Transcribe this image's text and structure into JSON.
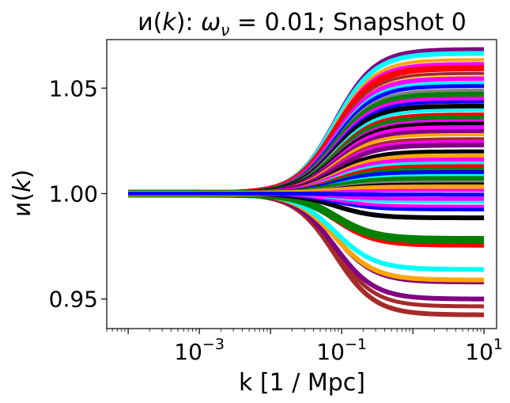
{
  "chart_data": {
    "type": "line",
    "title": "ии(k): ω_ν = 0.01; Snapshot 0",
    "title_parts": {
      "func": "и(",
      "var": "k",
      "close": "): ",
      "omega": "ω",
      "nu": "ν",
      "rest": " = 0.01; Snapshot 0"
    },
    "xlabel": "k [1 / Mpc]",
    "ylabel_parts": {
      "func": "и(",
      "var": "k",
      "close": ")"
    },
    "x_scale": "log",
    "xlim": [
      5e-05,
      15
    ],
    "ylim": [
      0.936,
      1.073
    ],
    "x_ticks": [
      {
        "value": 0.001,
        "base": "10",
        "exp": "−3"
      },
      {
        "value": 0.1,
        "base": "10",
        "exp": "−1"
      },
      {
        "value": 10,
        "base": "10",
        "exp": "1"
      }
    ],
    "y_ticks": [
      {
        "value": 0.95,
        "label": "0.95"
      },
      {
        "value": 1.0,
        "label": "1.00"
      },
      {
        "value": 1.05,
        "label": "1.05"
      }
    ],
    "k_range": [
      0.0001,
      10
    ],
    "transition_k": 0.08,
    "series": [
      {
        "final": 1.0685,
        "color": "#800080",
        "width": 5
      },
      {
        "final": 1.0665,
        "color": "#00ffff",
        "width": 6
      },
      {
        "final": 1.0635,
        "color": "#ffa500",
        "width": 4
      },
      {
        "final": 1.0615,
        "color": "#ff00ff",
        "width": 5
      },
      {
        "final": 1.0595,
        "color": "#ff0000",
        "width": 8
      },
      {
        "final": 1.057,
        "color": "#a52a2a",
        "width": 4
      },
      {
        "final": 1.0555,
        "color": "#ffff00",
        "width": 3
      },
      {
        "final": 1.0545,
        "color": "#ff00ff",
        "width": 6
      },
      {
        "final": 1.0525,
        "color": "#00ffff",
        "width": 4
      },
      {
        "final": 1.051,
        "color": "#0000ff",
        "width": 5
      },
      {
        "final": 1.049,
        "color": "#808080",
        "width": 4
      },
      {
        "final": 1.047,
        "color": "#008000",
        "width": 7
      },
      {
        "final": 1.045,
        "color": "#ff00ff",
        "width": 5
      },
      {
        "final": 1.0435,
        "color": "#0000ff",
        "width": 4
      },
      {
        "final": 1.0415,
        "color": "#000000",
        "width": 6
      },
      {
        "final": 1.0395,
        "color": "#00ffff",
        "width": 4
      },
      {
        "final": 1.0375,
        "color": "#ff0000",
        "width": 5
      },
      {
        "final": 1.036,
        "color": "#008000",
        "width": 6
      },
      {
        "final": 1.0345,
        "color": "#ff00ff",
        "width": 4
      },
      {
        "final": 1.033,
        "color": "#000000",
        "width": 6
      },
      {
        "final": 1.0315,
        "color": "#ff00ff",
        "width": 5
      },
      {
        "final": 1.0295,
        "color": "#800080",
        "width": 6
      },
      {
        "final": 1.028,
        "color": "#ffa500",
        "width": 4
      },
      {
        "final": 1.026,
        "color": "#a52a2a",
        "width": 4
      },
      {
        "final": 1.0245,
        "color": "#ff00ff",
        "width": 5
      },
      {
        "final": 1.023,
        "color": "#800080",
        "width": 6
      },
      {
        "final": 1.02,
        "color": "#000000",
        "width": 5
      },
      {
        "final": 1.018,
        "color": "#ffa500",
        "width": 5
      },
      {
        "final": 1.016,
        "color": "#ff00ff",
        "width": 6
      },
      {
        "final": 1.0145,
        "color": "#00ffff",
        "width": 4
      },
      {
        "final": 1.013,
        "color": "#ff0000",
        "width": 5
      },
      {
        "final": 1.0115,
        "color": "#008000",
        "width": 5
      },
      {
        "final": 1.01,
        "color": "#0000ff",
        "width": 6
      },
      {
        "final": 1.0085,
        "color": "#00ffff",
        "width": 4
      },
      {
        "final": 1.007,
        "color": "#008000",
        "width": 7
      },
      {
        "final": 1.0055,
        "color": "#808080",
        "width": 4
      },
      {
        "final": 1.0045,
        "color": "#000000",
        "width": 4
      },
      {
        "final": 1.003,
        "color": "#ffa500",
        "width": 7
      },
      {
        "final": 1.0015,
        "color": "#ff00ff",
        "width": 4
      },
      {
        "final": 0.9975,
        "color": "#ff00ff",
        "width": 5
      },
      {
        "final": 0.996,
        "color": "#00ffff",
        "width": 4
      },
      {
        "final": 0.994,
        "color": "#ff00ff",
        "width": 4
      },
      {
        "final": 0.9925,
        "color": "#0000ff",
        "width": 5
      },
      {
        "final": 0.9885,
        "color": "#000000",
        "width": 6
      },
      {
        "final": 0.978,
        "color": "#008000",
        "width": 10
      },
      {
        "final": 0.9755,
        "color": "#ff0000",
        "width": 6
      },
      {
        "final": 0.964,
        "color": "#00ffff",
        "width": 6
      },
      {
        "final": 0.959,
        "color": "#ffa500",
        "width": 6
      },
      {
        "final": 0.9575,
        "color": "#800080",
        "width": 3
      },
      {
        "final": 0.95,
        "color": "#800080",
        "width": 6
      },
      {
        "final": 0.9465,
        "color": "#a52a2a",
        "width": 5
      },
      {
        "final": 0.9425,
        "color": "#a52a2a",
        "width": 6
      }
    ],
    "overlay_series_index": 10
  }
}
